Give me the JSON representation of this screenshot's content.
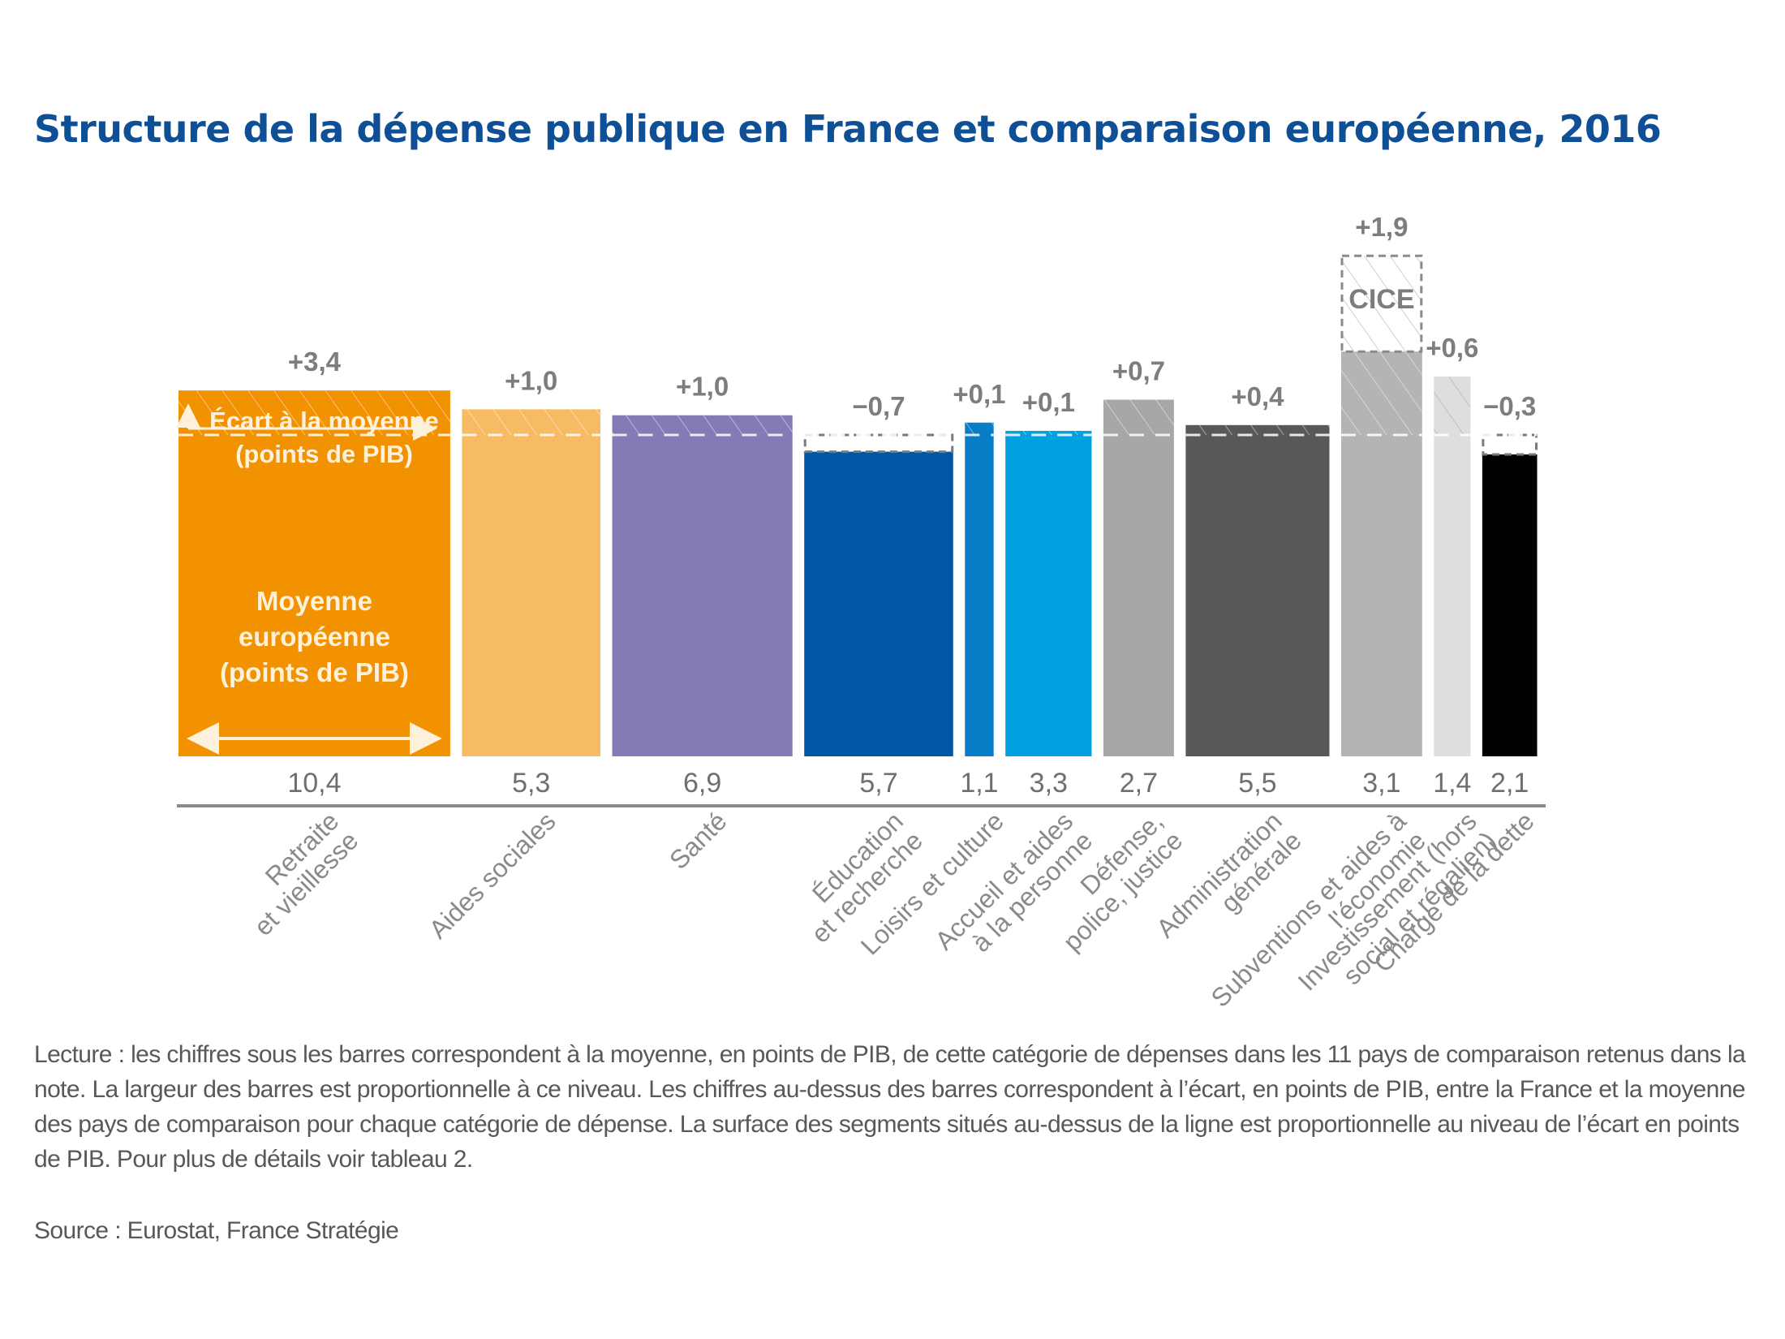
{
  "chart_data": {
    "type": "bar",
    "variant": "variable-width (marimekko-style) bars with deviation segments",
    "title": "Structure de la dépense publique en France et comparaison européenne, 2016",
    "xlabel": "",
    "ylabel": "",
    "legend_annotations": {
      "gap_label": [
        "Écart à la moyenne",
        "(points de PIB)"
      ],
      "mean_label": [
        "Moyenne",
        "européenne",
        "(points de PIB)"
      ],
      "cice_label": "CICE"
    },
    "categories": [
      {
        "label": [
          "Retraite",
          "et vieillesse"
        ],
        "mean": 10.4,
        "mean_label": "10,4",
        "gap": 3.4,
        "gap_label": "+3,4",
        "color": "#f39200"
      },
      {
        "label": [
          "Aides sociales"
        ],
        "mean": 5.3,
        "mean_label": "5,3",
        "gap": 1.0,
        "gap_label": "+1,0",
        "color": "#f7bb64"
      },
      {
        "label": [
          "Santé"
        ],
        "mean": 6.9,
        "mean_label": "6,9",
        "gap": 1.0,
        "gap_label": "+1,0",
        "color": "#857ab6"
      },
      {
        "label": [
          "Éducation",
          "et recherche"
        ],
        "mean": 5.7,
        "mean_label": "5,7",
        "gap": -0.7,
        "gap_label": "−0,7",
        "color": "#0057a5"
      },
      {
        "label": [
          "Loisirs et culture"
        ],
        "mean": 1.1,
        "mean_label": "1,1",
        "gap": 0.1,
        "gap_label": "+0,1",
        "color": "#0a7dc8"
      },
      {
        "label": [
          "Accueil et aides",
          "à la personne"
        ],
        "mean": 3.3,
        "mean_label": "3,3",
        "gap": 0.1,
        "gap_label": "+0,1",
        "color": "#00a0e1"
      },
      {
        "label": [
          "Défense,",
          "police, justice"
        ],
        "mean": 2.7,
        "mean_label": "2,7",
        "gap": 0.7,
        "gap_label": "+0,7",
        "color": "#a7a7a9"
      },
      {
        "label": [
          "Administration",
          "générale"
        ],
        "mean": 5.5,
        "mean_label": "5,5",
        "gap": 0.4,
        "gap_label": "+0,4",
        "color": "#58585a"
      },
      {
        "label": [
          "Subventions et aides à",
          "l'économie"
        ],
        "mean": 3.1,
        "mean_label": "3,1",
        "gap": 1.9,
        "gap_label": "+1,9",
        "cice": true,
        "color": "#b4b4b5"
      },
      {
        "label": [
          "Investissement (hors",
          "social et régalien)"
        ],
        "mean": 1.4,
        "mean_label": "1,4",
        "gap": 0.6,
        "gap_label": "+0,6",
        "color": "#dededf"
      },
      {
        "label": [
          "Charge de la dette"
        ],
        "mean": 2.1,
        "mean_label": "2,1",
        "gap": -0.3,
        "gap_label": "−0,3",
        "color": "#000000"
      }
    ]
  },
  "notes": {
    "lecture": "Lecture : les chiffres sous les barres correspondent à la moyenne, en points de PIB, de cette catégorie de dépenses dans les 11 pays de comparaison retenus dans la note. La largeur des barres est proportionnelle à ce niveau. Les chiffres au-dessus des barres correspondent à l’écart, en points de PIB, entre la France et la moyenne des pays de comparaison pour chaque catégorie de dépense. La surface des segments situés au-dessus de la ligne est proportionnelle au niveau de l’écart en points de PIB. Pour plus de détails voir tableau 2.",
    "source": "Source : Eurostat, France Stratégie"
  }
}
